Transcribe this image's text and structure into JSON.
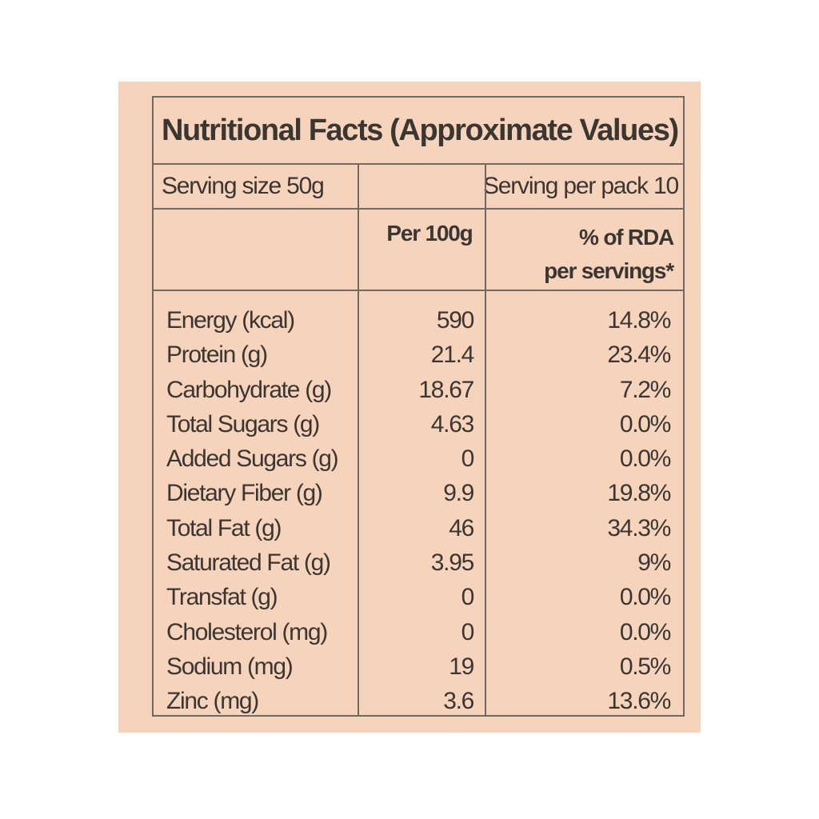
{
  "label": {
    "title": "Nutritional Facts (Approximate Values)",
    "serving_size": "Serving size 50g",
    "serving_per_pack": "Serving per pack 10",
    "col_per100": "Per 100g",
    "col_rda_line1": "% of RDA",
    "col_rda_line2": "per servings*"
  },
  "nutrients": [
    {
      "name": "Energy (kcal)",
      "per100": "590",
      "rda": "14.8%"
    },
    {
      "name": "Protein (g)",
      "per100": "21.4",
      "rda": "23.4%"
    },
    {
      "name": "Carbohydrate (g)",
      "per100": "18.67",
      "rda": "7.2%"
    },
    {
      "name": "Total Sugars (g)",
      "per100": "4.63",
      "rda": "0.0%"
    },
    {
      "name": "Added Sugars (g)",
      "per100": "0",
      "rda": "0.0%"
    },
    {
      "name": "Dietary Fiber  (g)",
      "per100": "9.9",
      "rda": "19.8%"
    },
    {
      "name": "Total Fat (g)",
      "per100": "46",
      "rda": "34.3%"
    },
    {
      "name": "Saturated Fat (g)",
      "per100": "3.95",
      "rda": "9%"
    },
    {
      "name": "Transfat (g)",
      "per100": "0",
      "rda": "0.0%"
    },
    {
      "name": "Cholesterol (mg)",
      "per100": "0",
      "rda": "0.0%"
    },
    {
      "name": "Sodium (mg)",
      "per100": "19",
      "rda": "0.5%"
    },
    {
      "name": "Zinc (mg)",
      "per100": "3.6",
      "rda": "13.6%"
    }
  ],
  "colors": {
    "panel_background": "#f6d3bb",
    "text": "#3a3733",
    "rule": "#6e6a63"
  }
}
